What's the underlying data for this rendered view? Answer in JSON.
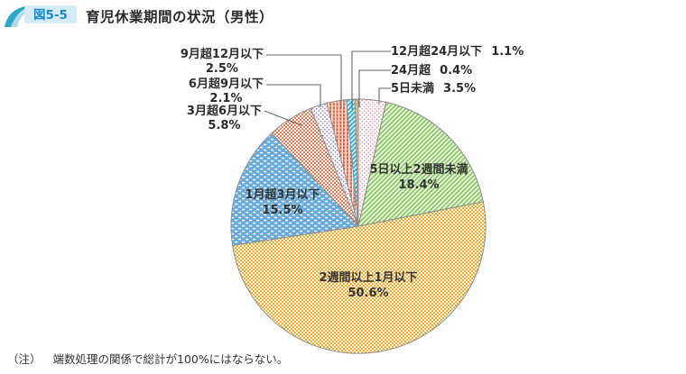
{
  "header": {
    "figure_label": "図5-5",
    "title": "育児休業期間の状況（男性）"
  },
  "note": {
    "prefix": "（注）",
    "text": "端数処理の関係で総計が100%にはならない。"
  },
  "colors": {
    "badge_bg": "#d7ebf7",
    "badge_text": "#1789cc",
    "swoosh_dark": "#2fa9c9",
    "swoosh_light": "#aedaec",
    "slice_outline": "#8c8c8c",
    "leader_line": "#666666",
    "label_text": "#2b2b2b"
  },
  "chart_data": {
    "type": "pie",
    "title": "育児休業期間の状況（男性）",
    "unit": "%",
    "start_angle": "12時位置から時計回り",
    "slices": [
      {
        "label": "5日未満",
        "value": 3.5,
        "pct_label": "3.5%",
        "pattern": "dot",
        "bg": "#ffffff",
        "fg": "#ef7fa7"
      },
      {
        "label": "5日以上2週間未満",
        "value": 18.4,
        "pct_label": "18.4%",
        "pattern": "diag",
        "bg": "#e6f3d7",
        "fg": "#7bc257"
      },
      {
        "label": "2週間以上1月以下",
        "value": 50.6,
        "pct_label": "50.6%",
        "pattern": "checker",
        "bg": "#f6a91f",
        "fg": "#ffffff"
      },
      {
        "label": "1月超3月以下",
        "value": 15.5,
        "pct_label": "15.5%",
        "pattern": "hdash",
        "bg": "#66abdd",
        "fg": "#ffffff"
      },
      {
        "label": "3月超6月以下",
        "value": 5.8,
        "pct_label": "5.8%",
        "pattern": "checker",
        "bg": "#ffffff",
        "fg": "#e87a52"
      },
      {
        "label": "6月超9月以下",
        "value": 2.1,
        "pct_label": "2.1%",
        "pattern": "dot",
        "bg": "#ffffff",
        "fg": "#8266bb"
      },
      {
        "label": "9月超12月以下",
        "value": 2.5,
        "pct_label": "2.5%",
        "pattern": "vstripe",
        "bg": "#ffffff",
        "fg": "#e1603f"
      },
      {
        "label": "12月超24月以下",
        "value": 1.1,
        "pct_label": "1.1%",
        "pattern": "diag",
        "bg": "#2eb6e9",
        "fg": "#ffffff"
      },
      {
        "label": "24月超",
        "value": 0.4,
        "pct_label": "0.4%",
        "pattern": "dot",
        "bg": "#ddae5e",
        "fg": "#ffffff"
      }
    ]
  }
}
